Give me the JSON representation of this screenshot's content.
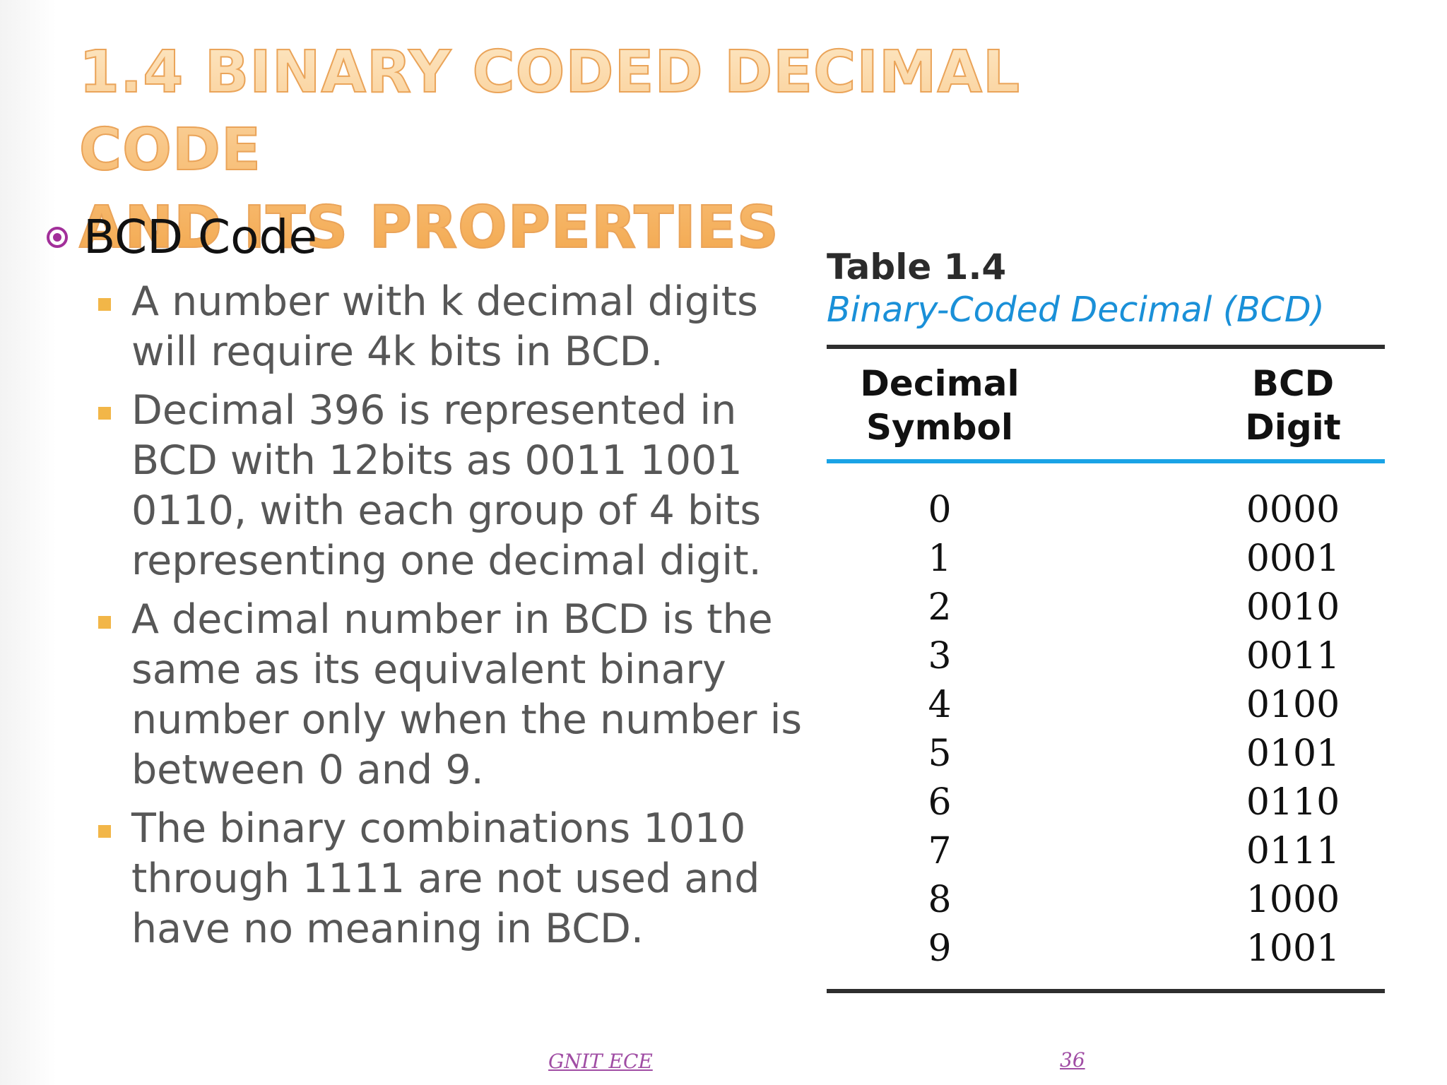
{
  "title": {
    "line1": "1.4 BINARY CODED DECIMAL CODE",
    "line2": "AND ITS PROPERTIES"
  },
  "main_bullet": {
    "text": "BCD Code"
  },
  "sub_bullets": [
    "A number with k decimal digits will require 4k bits in BCD.",
    "Decimal 396 is represented in BCD with 12bits as 0011 1001 0110, with each group of 4 bits representing one decimal digit.",
    " A decimal number in BCD is the same as its equivalent binary number only when the number is between 0 and 9.",
    "The binary combinations 1010 through 1111 are not used and have no meaning in BCD."
  ],
  "table": {
    "label": "Table 1.4",
    "caption": "Binary-Coded Decimal (BCD)",
    "headers": {
      "decimal": [
        "Decimal",
        "Symbol"
      ],
      "bcd": [
        "BCD",
        "Digit"
      ]
    },
    "rows": [
      {
        "decimal": "0",
        "bcd": "0000"
      },
      {
        "decimal": "1",
        "bcd": "0001"
      },
      {
        "decimal": "2",
        "bcd": "0010"
      },
      {
        "decimal": "3",
        "bcd": "0011"
      },
      {
        "decimal": "4",
        "bcd": "0100"
      },
      {
        "decimal": "5",
        "bcd": "0101"
      },
      {
        "decimal": "6",
        "bcd": "0110"
      },
      {
        "decimal": "7",
        "bcd": "0111"
      },
      {
        "decimal": "8",
        "bcd": "1000"
      },
      {
        "decimal": "9",
        "bcd": "1001"
      }
    ]
  },
  "footer": {
    "left": "GNIT ECE",
    "page_number": "36"
  },
  "colors": {
    "title_gradient_top": "#fde7c4",
    "title_gradient_bottom": "#f3a74c",
    "circle_bullet": "#a22f9a",
    "square_bullet": "#f2b648",
    "body_text": "#575757",
    "table_caption": "#1a90d8",
    "table_rule_blue": "#1aa3e6",
    "footer_text": "#a04da4"
  },
  "icons": {
    "main_bullet": "circle-dot-icon",
    "sub_bullet": "square-bullet-icon"
  }
}
